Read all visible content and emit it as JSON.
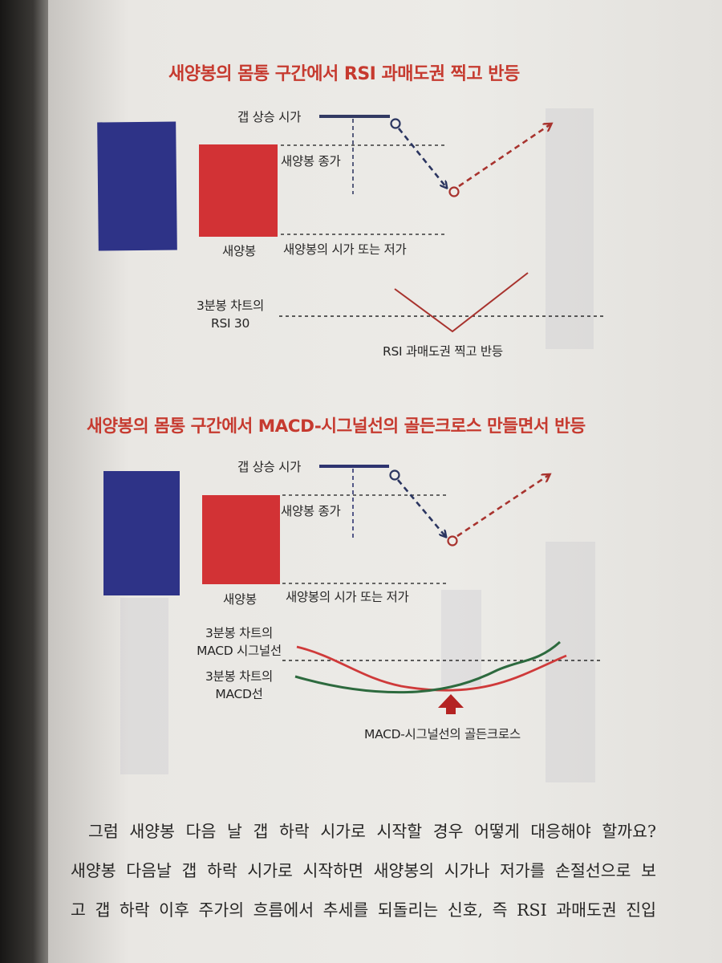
{
  "figure1": {
    "title": "새양봉의 몸통 구간에서 RSI 과매도권 찍고 반등",
    "labels": {
      "gap_up_open": "갭 상승 시가",
      "close": "새양봉 종가",
      "candle": "새양봉",
      "open_or_low": "새양봉의 시가 또는 저가",
      "rsi_label": "3분봉 차트의\nRSI 30",
      "rsi_rebound": "RSI 과매도권 찍고 반등"
    }
  },
  "figure2": {
    "title": "새양봉의 몸통 구간에서 MACD-시그널선의 골든크로스 만들면서 반등",
    "labels": {
      "gap_up_open": "갭 상승 시가",
      "close": "새양봉 종가",
      "candle": "새양봉",
      "open_or_low": "새양봉의 시가 또는 저가",
      "signal_line": "3분봉 차트의\nMACD 시그널선",
      "macd_line": "3분봉 차트의\nMACD선",
      "golden_cross": "MACD-시그널선의 골든크로스"
    }
  },
  "body": {
    "paragraph": [
      "그럼 새양봉 다음 날 갭 하락 시가로 시작할 경우 어떻게 대응해야 할까요?",
      "새양봉 다음날 갭 하락 시가로 시작하면 새양봉의 시가나 저가를 손절선으로 보",
      "고 갭 하락 이후 주가의 흐름에서 추세를 되돌리는 신호, 즉 RSI 과매도권 진입"
    ]
  },
  "colors": {
    "blue_candle": "#2e3387",
    "red_candle": "#d23235",
    "title_red": "#c63a2f",
    "arrow_navy": "#2b3560",
    "arrow_red": "#a8332e",
    "macd_green": "#2d6a3e"
  }
}
